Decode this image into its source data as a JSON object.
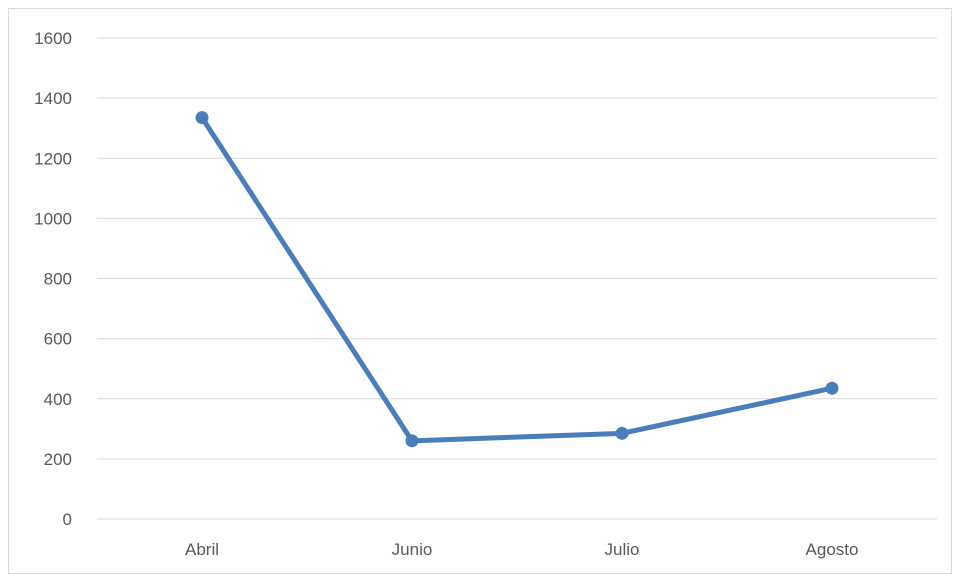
{
  "chart_data": {
    "type": "line",
    "title": "",
    "xlabel": "",
    "ylabel": "",
    "categories": [
      "Abril",
      "Junio",
      "Julio",
      "Agosto"
    ],
    "series": [
      {
        "values": [
          1335,
          260,
          285,
          435
        ],
        "color": "#4a7ebb"
      }
    ],
    "ylim": [
      0,
      1600
    ],
    "yticks": [
      0,
      200,
      400,
      600,
      800,
      1000,
      1200,
      1400,
      1600
    ],
    "grid": true,
    "legend": "none"
  }
}
